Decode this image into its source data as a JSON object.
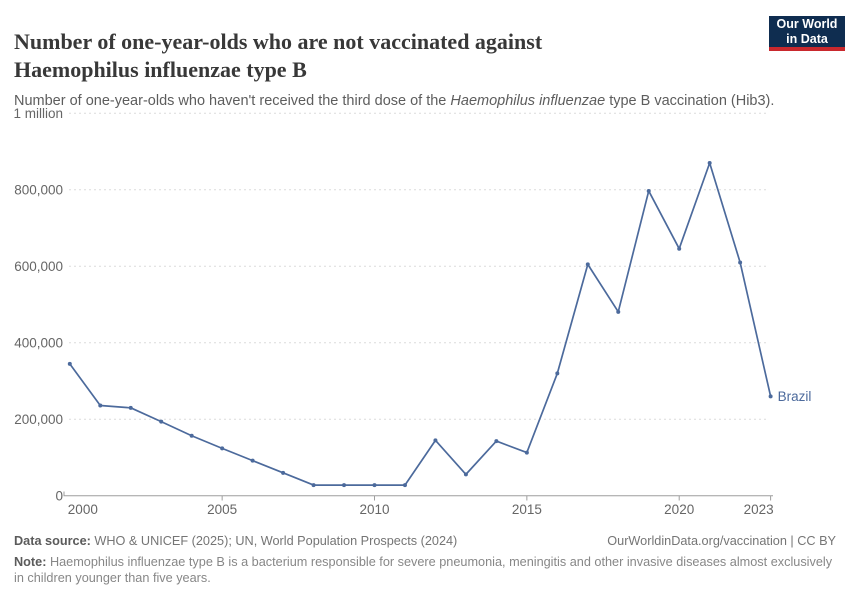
{
  "header": {
    "title": "Number of one-year-olds who are not vaccinated against Haemophilus influenzae type B",
    "subtitle": {
      "prefix": "Number of one-year-olds who haven't received the third dose of the ",
      "italic": "Haemophilus influenzae",
      "suffix": " type B vaccination (Hib3)."
    },
    "logo": {
      "line1": "Our World",
      "line2": "in Data"
    }
  },
  "chart_data": {
    "type": "line",
    "title": "Number of one-year-olds who are not vaccinated against Haemophilus influenzae type B",
    "x": [
      2000,
      2001,
      2002,
      2003,
      2004,
      2005,
      2006,
      2007,
      2008,
      2009,
      2010,
      2011,
      2012,
      2013,
      2014,
      2015,
      2016,
      2017,
      2018,
      2019,
      2020,
      2021,
      2022,
      2023
    ],
    "series": [
      {
        "name": "Brazil",
        "values": [
          345000,
          236000,
          230000,
          194000,
          157000,
          124000,
          92000,
          60000,
          28000,
          28000,
          28000,
          28000,
          145000,
          56000,
          143000,
          113000,
          320000,
          605000,
          481000,
          797000,
          646000,
          870000,
          610000,
          260000
        ]
      }
    ],
    "x_ticks": [
      2000,
      2005,
      2010,
      2015,
      2020,
      2023
    ],
    "y_ticks": [
      {
        "value": 0,
        "label": "0"
      },
      {
        "value": 200000,
        "label": "200,000"
      },
      {
        "value": 400000,
        "label": "400,000"
      },
      {
        "value": 600000,
        "label": "600,000"
      },
      {
        "value": 800000,
        "label": "800,000"
      },
      {
        "value": 1000000,
        "label": "1 million"
      }
    ],
    "xlim": [
      2000,
      2023
    ],
    "ylim": [
      0,
      1000000
    ],
    "grid": "horizontal-dashed",
    "legend_position": "end-of-line",
    "line_color": "#4c6a9c",
    "grid_color": "#dcdcdc",
    "axis_color": "#9e9e9e",
    "tick_label_color": "#666666"
  },
  "footer": {
    "source": {
      "label": "Data source:",
      "text": " WHO & UNICEF (2025); UN, World Population Prospects (2024)"
    },
    "link": "OurWorldinData.org/vaccination | CC BY",
    "note": {
      "label": "Note:",
      "text": " Haemophilus influenzae type B is a bacterium responsible for severe pneumonia, meningitis and other invasive diseases almost exclusively in children younger than five years."
    }
  }
}
